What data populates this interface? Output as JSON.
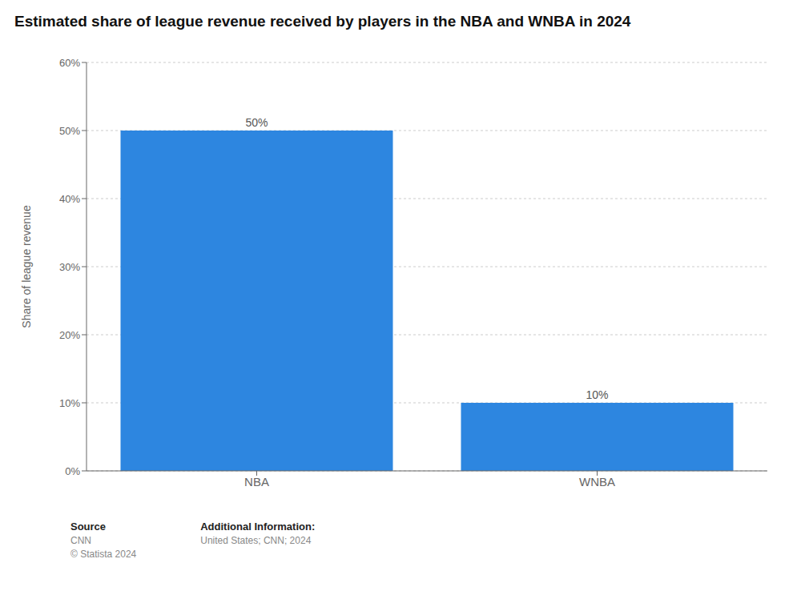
{
  "chart_data": {
    "type": "bar",
    "title": "Estimated share of league revenue received by players in the NBA and WNBA in 2024",
    "categories": [
      "NBA",
      "WNBA"
    ],
    "values": [
      50,
      10
    ],
    "value_labels": [
      "50%",
      "10%"
    ],
    "data_labels": true,
    "color": "#2d86e0",
    "ylabel": "Share of league revenue",
    "ylim": [
      0,
      60
    ],
    "yticks": [
      {
        "value": 0,
        "label": "0%"
      },
      {
        "value": 10,
        "label": "10%"
      },
      {
        "value": 20,
        "label": "20%"
      },
      {
        "value": 30,
        "label": "30%"
      },
      {
        "value": 40,
        "label": "40%"
      },
      {
        "value": 50,
        "label": "50%"
      },
      {
        "value": 60,
        "label": "60%"
      }
    ],
    "grid": true,
    "annotations": [
      [
        "Source",
        "CNN",
        "© Statista 2024"
      ],
      [
        "Additional Information:",
        "United States; CNN; 2024"
      ]
    ]
  }
}
